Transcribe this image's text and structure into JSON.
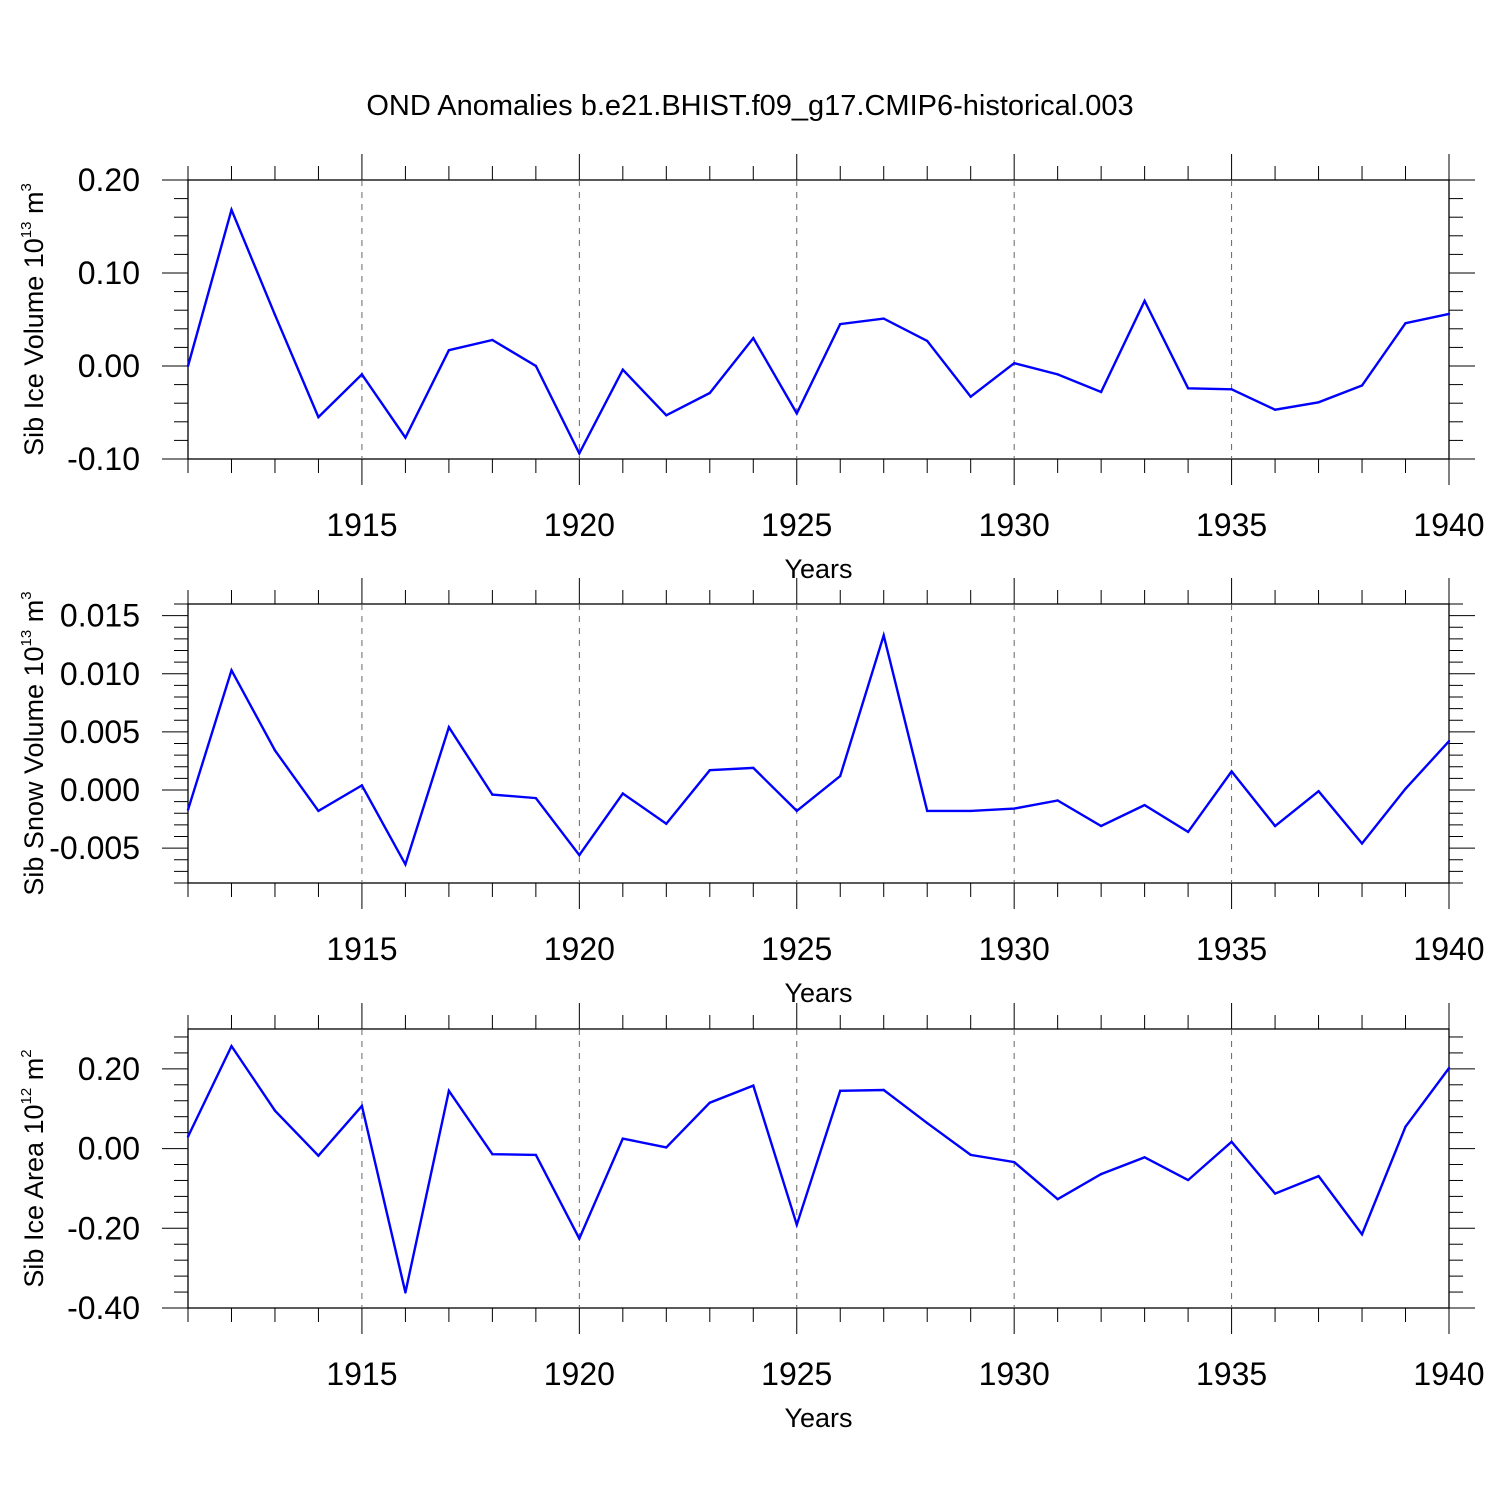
{
  "figure": {
    "title": "OND Anomalies b.e21.BHIST.f09_g17.CMIP6-historical.003"
  },
  "chart_data": [
    {
      "type": "line",
      "id": "ice-volume",
      "title": "",
      "xlabel": "Years",
      "ylabel": "Sib Ice Volume 10",
      "ylabel_exp": "13",
      "ylabel_unit": " m",
      "ylabel_unit_exp": "3",
      "xlim": [
        1911,
        1940
      ],
      "ylim": [
        -0.1,
        0.2
      ],
      "yticks": [
        -0.1,
        0.0,
        0.1,
        0.2
      ],
      "ytick_labels": [
        "-0.10",
        "0.00",
        "0.10",
        "0.20"
      ],
      "xticks": [
        1915,
        1920,
        1925,
        1930,
        1935,
        1940
      ],
      "xtick_labels": [
        "1915",
        "1920",
        "1925",
        "1930",
        "1935",
        "1940"
      ],
      "x": [
        1911,
        1912,
        1913,
        1914,
        1915,
        1916,
        1917,
        1918,
        1919,
        1920,
        1921,
        1922,
        1923,
        1924,
        1925,
        1926,
        1927,
        1928,
        1929,
        1930,
        1931,
        1932,
        1933,
        1934,
        1935,
        1936,
        1937,
        1938,
        1939,
        1940
      ],
      "series": [
        {
          "color": "#0000ff",
          "values": [
            0.0,
            0.168,
            0.055,
            -0.055,
            -0.009,
            -0.077,
            0.017,
            0.028,
            0.0,
            -0.094,
            -0.004,
            -0.053,
            -0.029,
            0.03,
            -0.051,
            0.045,
            0.051,
            0.027,
            -0.033,
            0.003,
            -0.009,
            -0.028,
            0.07,
            -0.024,
            -0.025,
            -0.047,
            -0.039,
            -0.021,
            0.046,
            0.056
          ]
        }
      ]
    },
    {
      "type": "line",
      "id": "snow-volume",
      "title": "",
      "xlabel": "Years",
      "ylabel": "Sib Snow Volume 10",
      "ylabel_exp": "13",
      "ylabel_unit": " m",
      "ylabel_unit_exp": "3",
      "xlim": [
        1911,
        1940
      ],
      "ylim": [
        -0.008,
        0.016
      ],
      "yticks": [
        -0.005,
        0.0,
        0.005,
        0.01,
        0.015
      ],
      "ytick_labels": [
        "-0.005",
        "0.000",
        "0.005",
        "0.010",
        "0.015"
      ],
      "xticks": [
        1915,
        1920,
        1925,
        1930,
        1935,
        1940
      ],
      "xtick_labels": [
        "1915",
        "1920",
        "1925",
        "1930",
        "1935",
        "1940"
      ],
      "x": [
        1911,
        1912,
        1913,
        1914,
        1915,
        1916,
        1917,
        1918,
        1919,
        1920,
        1921,
        1922,
        1923,
        1924,
        1925,
        1926,
        1927,
        1928,
        1929,
        1930,
        1931,
        1932,
        1933,
        1934,
        1935,
        1936,
        1937,
        1938,
        1939,
        1940
      ],
      "series": [
        {
          "color": "#0000ff",
          "values": [
            -0.0017,
            0.0103,
            0.0034,
            -0.0018,
            0.0004,
            -0.0064,
            0.0054,
            -0.0004,
            -0.0007,
            -0.0056,
            -0.0003,
            -0.0029,
            0.0017,
            0.0019,
            -0.0018,
            0.0012,
            0.0133,
            -0.0018,
            -0.0018,
            -0.0016,
            -0.0009,
            -0.0031,
            -0.0013,
            -0.0036,
            0.0016,
            -0.0031,
            -0.0001,
            -0.0046,
            0.0001,
            0.0042
          ]
        }
      ]
    },
    {
      "type": "line",
      "id": "ice-area",
      "title": "",
      "xlabel": "Years",
      "ylabel": "Sib Ice Area 10",
      "ylabel_exp": "12",
      "ylabel_unit": " m",
      "ylabel_unit_exp": "2",
      "xlim": [
        1911,
        1940
      ],
      "ylim": [
        -0.4,
        0.3
      ],
      "yticks": [
        -0.4,
        -0.2,
        0.0,
        0.2
      ],
      "ytick_labels": [
        "-0.40",
        "-0.20",
        "0.00",
        "0.20"
      ],
      "xticks": [
        1915,
        1920,
        1925,
        1930,
        1935,
        1940
      ],
      "xtick_labels": [
        "1915",
        "1920",
        "1925",
        "1930",
        "1935",
        "1940"
      ],
      "x": [
        1911,
        1912,
        1913,
        1914,
        1915,
        1916,
        1917,
        1918,
        1919,
        1920,
        1921,
        1922,
        1923,
        1924,
        1925,
        1926,
        1927,
        1928,
        1929,
        1930,
        1931,
        1932,
        1933,
        1934,
        1935,
        1936,
        1937,
        1938,
        1939,
        1940
      ],
      "series": [
        {
          "color": "#0000ff",
          "values": [
            0.03,
            0.257,
            0.095,
            -0.018,
            0.107,
            -0.361,
            0.145,
            -0.014,
            -0.016,
            -0.226,
            0.025,
            0.003,
            0.115,
            0.158,
            -0.191,
            0.145,
            0.147,
            0.064,
            -0.016,
            -0.034,
            -0.127,
            -0.064,
            -0.022,
            -0.079,
            0.017,
            -0.113,
            -0.069,
            -0.215,
            0.055,
            0.202
          ]
        }
      ]
    }
  ]
}
